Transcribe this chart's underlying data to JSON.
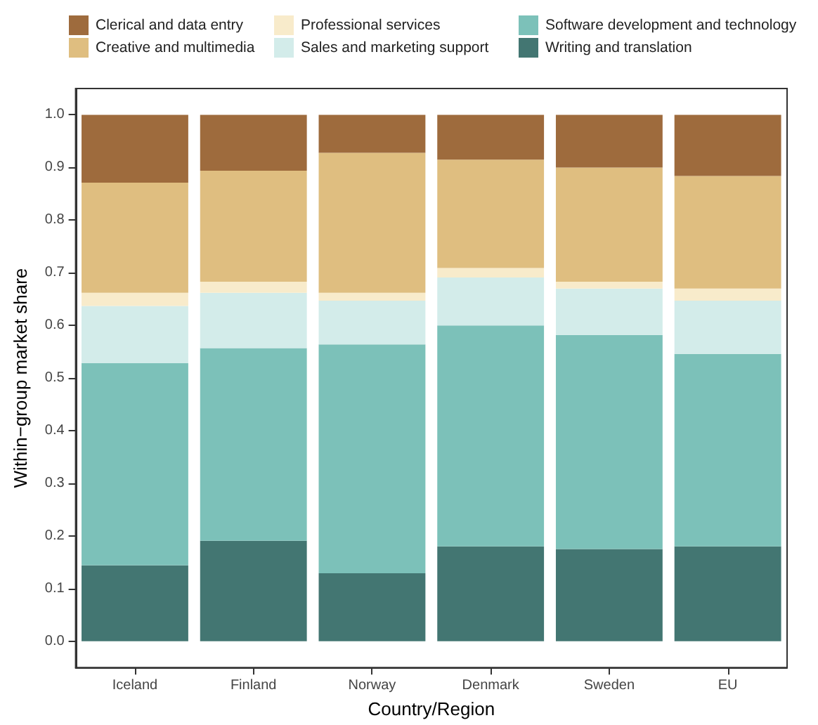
{
  "chart_data": {
    "type": "bar",
    "stacked": true,
    "xlabel": "Country/Region",
    "ylabel": "Within−group market share",
    "categories": [
      "Iceland",
      "Finland",
      "Norway",
      "Denmark",
      "Sweden",
      "EU"
    ],
    "series": [
      {
        "name": "Writing and translation",
        "color": "#437672",
        "values": [
          0.144,
          0.191,
          0.129,
          0.18,
          0.175,
          0.18
        ]
      },
      {
        "name": "Software development and technology",
        "color": "#7cc1b9",
        "values": [
          0.384,
          0.366,
          0.435,
          0.42,
          0.407,
          0.366
        ]
      },
      {
        "name": "Sales and marketing support",
        "color": "#d3ecea",
        "values": [
          0.109,
          0.105,
          0.083,
          0.091,
          0.088,
          0.101
        ]
      },
      {
        "name": "Professional services",
        "color": "#f8ebcb",
        "values": [
          0.025,
          0.021,
          0.015,
          0.018,
          0.013,
          0.023
        ]
      },
      {
        "name": "Creative and multimedia",
        "color": "#dfbe80",
        "values": [
          0.209,
          0.211,
          0.266,
          0.206,
          0.217,
          0.214
        ]
      },
      {
        "name": "Clerical and data entry",
        "color": "#9e6b3d",
        "values": [
          0.129,
          0.106,
          0.072,
          0.085,
          0.1,
          0.116
        ]
      }
    ],
    "ylim": [
      -0.05,
      1.05
    ],
    "yticks": [
      {
        "value": 0,
        "label": "0.0"
      },
      0.1,
      0.2,
      0.3,
      0.4,
      0.5,
      0.6,
      0.7,
      0.8,
      0.9,
      {
        "value": 1,
        "label": "1.0"
      }
    ],
    "grid": false,
    "legend": "top"
  }
}
